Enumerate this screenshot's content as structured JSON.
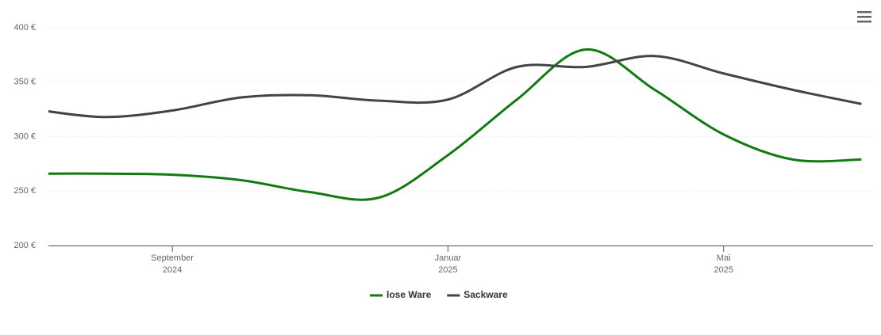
{
  "chart_data": {
    "type": "line",
    "x": [
      "2024-07",
      "2024-08",
      "2024-09",
      "2024-10",
      "2024-11",
      "2024-12",
      "2025-01",
      "2025-02",
      "2025-03",
      "2025-04",
      "2025-05",
      "2025-06",
      "2025-07"
    ],
    "series": [
      {
        "name": "lose Ware",
        "color": "#117a11",
        "values": [
          266,
          266,
          265,
          260,
          249,
          244,
          283,
          334,
          380,
          343,
          302,
          279,
          279
        ]
      },
      {
        "name": "Sackware",
        "color": "#434348",
        "values": [
          325,
          318,
          324,
          336,
          338,
          333,
          334,
          364,
          364,
          374,
          358,
          343,
          330
        ]
      }
    ],
    "xlim": [
      "2024-07",
      "2025-07"
    ],
    "xticks": [
      {
        "value": "2024-09",
        "label": [
          "September",
          "2024"
        ]
      },
      {
        "value": "2025-01",
        "label": [
          "Januar",
          "2025"
        ]
      },
      {
        "value": "2025-05",
        "label": [
          "Mai",
          "2025"
        ]
      }
    ],
    "ylim": [
      200,
      400
    ],
    "yticks": [
      {
        "value": 200,
        "label": "200 €"
      },
      {
        "value": 250,
        "label": "250 €"
      },
      {
        "value": 300,
        "label": "300 €"
      },
      {
        "value": 350,
        "label": "350 €"
      },
      {
        "value": 400,
        "label": "400 €"
      }
    ],
    "grid": true,
    "legend": "bottom"
  }
}
